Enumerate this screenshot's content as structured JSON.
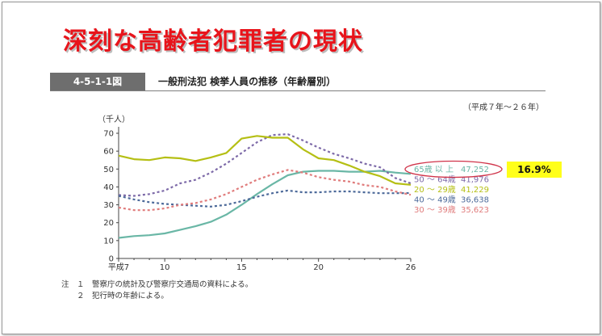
{
  "slide": {
    "title": "深刻な高齢者犯罪者の現状"
  },
  "figure": {
    "number": "4-5-1-1図",
    "title": "一般刑法犯 検挙人員の推移（年齢層別）",
    "period": "（平成７年～２６年）"
  },
  "badge": {
    "text": "16.9%",
    "color": "#ffff1a"
  },
  "notes": [
    "注　１　警察庁の統計及び警察庁交通局の資料による。",
    "　　２　犯行時の年齢による。"
  ],
  "chart_data": {
    "type": "line",
    "ylabel": "（千人）",
    "ylim": [
      0,
      70
    ],
    "yticks": [
      "0",
      "10",
      "20",
      "30",
      "40",
      "50",
      "60",
      "70"
    ],
    "xlim": [
      7,
      26
    ],
    "xticks": [
      {
        "x": 7,
        "label": "平成7"
      },
      {
        "x": 10,
        "label": "10"
      },
      {
        "x": 15,
        "label": "15"
      },
      {
        "x": 20,
        "label": "20"
      },
      {
        "x": 26,
        "label": "26"
      }
    ],
    "x": [
      7,
      8,
      9,
      10,
      11,
      12,
      13,
      14,
      15,
      16,
      17,
      18,
      19,
      20,
      21,
      22,
      23,
      24,
      25,
      26
    ],
    "series": [
      {
        "name": "65歳 以 上",
        "value_label": "47,252",
        "color": "#6ab7a6",
        "dash": "solid",
        "values": [
          11.5,
          12.5,
          13,
          14,
          16,
          18,
          20.5,
          24.5,
          30,
          36,
          41.5,
          46.5,
          48.5,
          49,
          49,
          48.5,
          48.5,
          49,
          48,
          47.3
        ]
      },
      {
        "name": "50 ～ 64歳",
        "value_label": "41,976",
        "color": "#7d6aa8",
        "dash": "dashed",
        "values": [
          35.5,
          35,
          36,
          38,
          42,
          44,
          48,
          53,
          59,
          65,
          69,
          69.5,
          66,
          62,
          58.5,
          56,
          53,
          51,
          45,
          42
        ]
      },
      {
        "name": "20 ～ 29歳",
        "value_label": "41,229",
        "color": "#b5bf14",
        "dash": "solid",
        "values": [
          57.5,
          55.5,
          55,
          56.5,
          56,
          54.5,
          56.5,
          59,
          67,
          68.5,
          67.5,
          67.5,
          61,
          56,
          55,
          52,
          48.5,
          46,
          42,
          41.2
        ]
      },
      {
        "name": "40 ～ 49歳",
        "value_label": "36,638",
        "color": "#4d6a9a",
        "dash": "dashed",
        "values": [
          35,
          33,
          31.5,
          30.5,
          30,
          29.5,
          29,
          30,
          32,
          34.5,
          36.5,
          38,
          37,
          37,
          37.5,
          37.5,
          37,
          36.5,
          36.5,
          36.6
        ]
      },
      {
        "name": "30 ～ 39歳",
        "value_label": "35,623",
        "color": "#e07c7c",
        "dash": "dashed",
        "values": [
          28.5,
          27,
          27,
          28,
          30,
          31,
          33,
          36,
          40,
          44,
          47,
          49.5,
          48,
          45.5,
          44,
          43,
          41,
          40,
          37.5,
          35.6
        ]
      }
    ],
    "grid": false,
    "legend_placement": "right"
  }
}
